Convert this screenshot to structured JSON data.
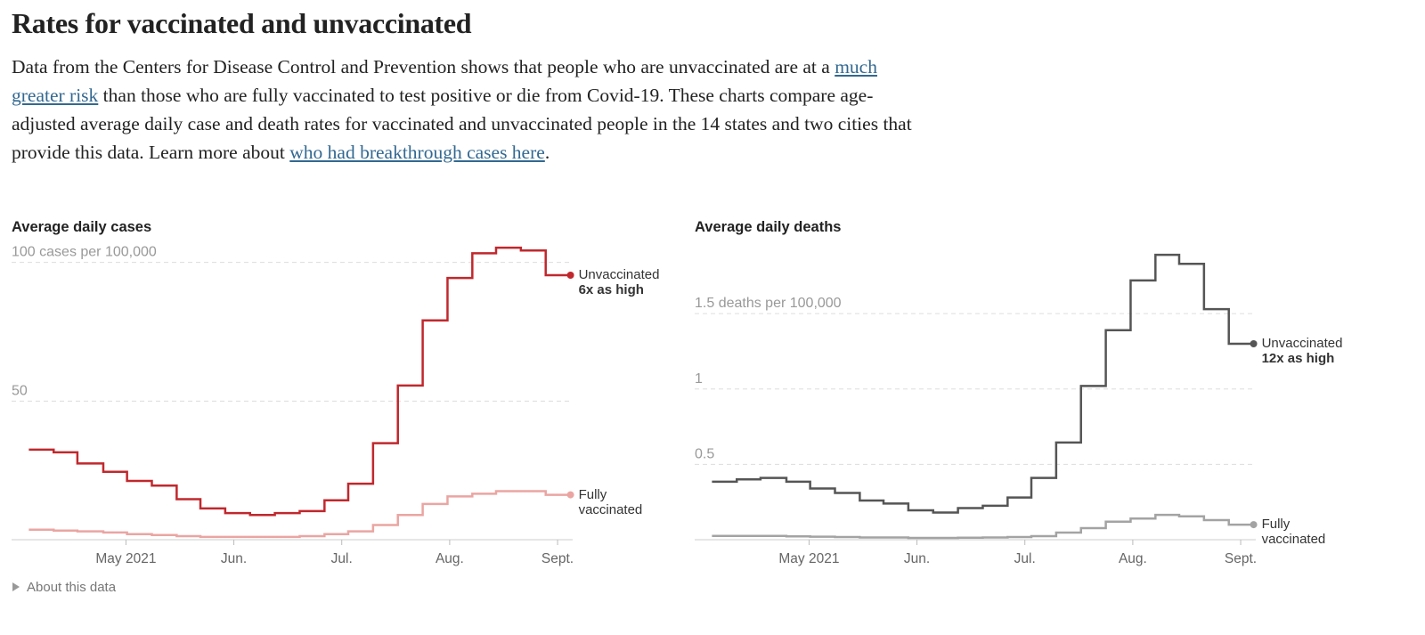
{
  "header": {
    "title": "Rates for vaccinated and unvaccinated"
  },
  "intro": {
    "parts": [
      "Data from the Centers for Disease Control and Prevention shows that people who are unvaccinated are at a ",
      "much greater risk",
      " than those who are fully vaccinated to test positive or die from Covid-19. These charts compare age-adjusted average daily case and death rates for vaccinated and unvaccinated people in the 14 states and two cities that provide this data. Learn more about ",
      "who had breakthrough cases here",
      "."
    ]
  },
  "chart_data": [
    {
      "type": "line",
      "step": true,
      "title": "Average daily cases",
      "x": [
        4.1,
        4.33,
        4.55,
        4.79,
        5.01,
        5.24,
        5.47,
        5.69,
        5.92,
        6.15,
        6.38,
        6.61,
        6.84,
        7.06,
        7.29,
        7.52,
        7.75,
        7.98,
        8.21,
        8.43,
        8.66,
        8.89
      ],
      "xlim": [
        3.94,
        9.14
      ],
      "xticks": [
        {
          "value": 5,
          "label": "May 2021"
        },
        {
          "value": 6,
          "label": "Jun."
        },
        {
          "value": 7,
          "label": "Jul."
        },
        {
          "value": 8,
          "label": "Aug."
        },
        {
          "value": 9,
          "label": "Sept."
        }
      ],
      "ylim": [
        0,
        106
      ],
      "yticks": [
        50,
        {
          "value": 100,
          "label": "100 cases per 100,000"
        }
      ],
      "grid": true,
      "annotation": "6x as high",
      "series": [
        {
          "name": "Unvaccinated",
          "color": "#c0282d",
          "values": [
            32.5,
            31.5,
            27.5,
            24.5,
            21.2,
            19.5,
            14.6,
            11.3,
            9.6,
            8.9,
            9.6,
            10.3,
            14.2,
            20.2,
            34.8,
            55.6,
            79.1,
            94.4,
            103.3,
            105.3,
            104.3,
            95.4
          ]
        },
        {
          "name": "Fully vaccinated",
          "color": "#eaa5a2",
          "values": [
            3.6,
            3.3,
            3.0,
            2.6,
            2.0,
            1.7,
            1.3,
            1.0,
            1.0,
            1.0,
            1.0,
            1.3,
            2.0,
            3.0,
            5.3,
            8.9,
            12.9,
            15.6,
            16.6,
            17.5,
            17.5,
            16.2
          ]
        }
      ]
    },
    {
      "type": "line",
      "step": true,
      "title": "Average daily deaths",
      "x": [
        4.1,
        4.33,
        4.55,
        4.79,
        5.01,
        5.24,
        5.47,
        5.69,
        5.92,
        6.15,
        6.38,
        6.61,
        6.84,
        7.06,
        7.29,
        7.52,
        7.75,
        7.98,
        8.21,
        8.43,
        8.66,
        8.89
      ],
      "xlim": [
        3.94,
        9.14
      ],
      "xticks": [
        {
          "value": 5,
          "label": "May 2021"
        },
        {
          "value": 6,
          "label": "Jun."
        },
        {
          "value": 7,
          "label": "Jul."
        },
        {
          "value": 8,
          "label": "Aug."
        },
        {
          "value": 9,
          "label": "Sept."
        }
      ],
      "ylim": [
        0,
        1.95
      ],
      "yticks": [
        0.5,
        1,
        {
          "value": 1.5,
          "label": "1.5 deaths per 100,000"
        }
      ],
      "grid": true,
      "annotation": "12x as high",
      "series": [
        {
          "name": "Unvaccinated",
          "color": "#555555",
          "values": [
            0.385,
            0.4,
            0.41,
            0.385,
            0.34,
            0.31,
            0.26,
            0.24,
            0.195,
            0.18,
            0.21,
            0.225,
            0.28,
            0.41,
            0.645,
            1.02,
            1.39,
            1.72,
            1.89,
            1.83,
            1.53,
            1.3
          ]
        },
        {
          "name": "Fully vaccinated",
          "color": "#a3a3a3",
          "values": [
            0.025,
            0.025,
            0.025,
            0.022,
            0.02,
            0.018,
            0.015,
            0.015,
            0.012,
            0.012,
            0.013,
            0.015,
            0.018,
            0.024,
            0.047,
            0.077,
            0.12,
            0.14,
            0.165,
            0.155,
            0.13,
            0.1
          ]
        }
      ]
    }
  ],
  "footer": "About this data"
}
